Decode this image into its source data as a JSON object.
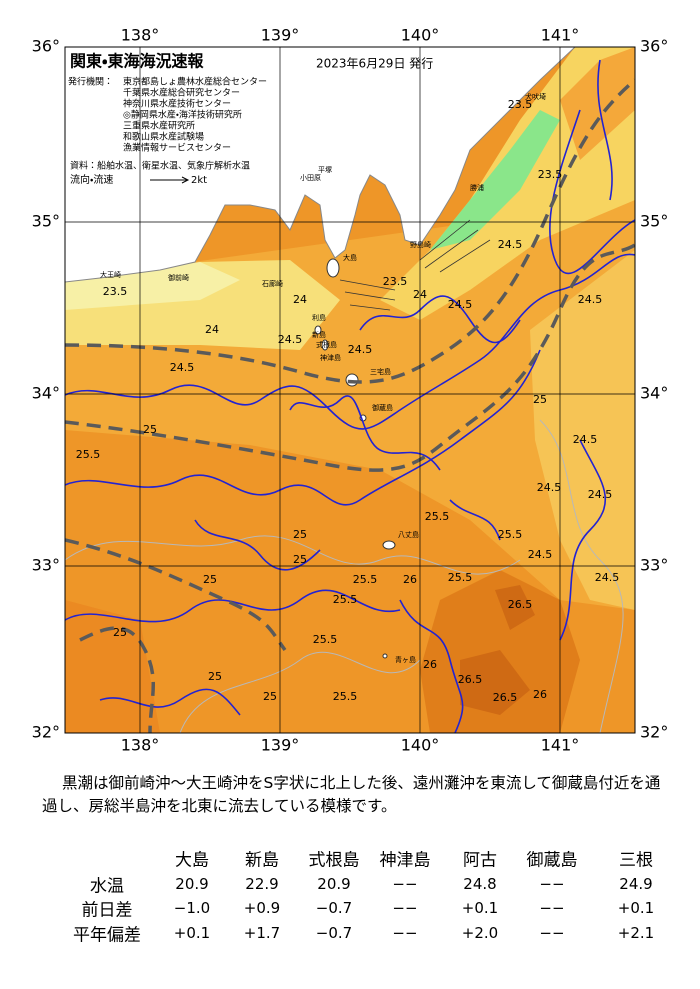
{
  "map": {
    "title": "関東・東海海況速報",
    "date": "2023年6月29日 発行",
    "issuer_heading": "発行機関：",
    "issuers": [
      "東京都島しょ農林水産総合センター",
      "千葉県水産総合研究センター",
      "神奈川県水産技術センター",
      "◎静岡県水産・海洋技術研究所",
      "三重県水産研究所",
      "和歌山県水産試験場",
      "漁業情報サービスセンター"
    ],
    "source": "資料：船舶水温、衛星水温、気象庁解析水温",
    "legend_label": "流向・流速",
    "legend_speed": "2kt",
    "lon_labels": [
      "138°",
      "139°",
      "140°",
      "141°"
    ],
    "lat_labels": [
      "36°",
      "35°",
      "34°",
      "33°",
      "32°"
    ],
    "places": [
      "大島",
      "利島",
      "新島",
      "式根島",
      "神津島",
      "三宅島",
      "御蔵島",
      "八丈島",
      "青ヶ島",
      "石廊崎",
      "御前崎",
      "大王崎",
      "犬吠埼",
      "勝浦",
      "野島崎",
      "平塚",
      "小田原"
    ],
    "contour_labels": [
      "23.5",
      "24",
      "24.5",
      "24",
      "24.5",
      "25.5",
      "25",
      "24.5",
      "25",
      "25.5",
      "25",
      "24.5",
      "24.5",
      "24.5",
      "24.5",
      "24.5",
      "25.5",
      "25",
      "25",
      "25.5",
      "25.5",
      "25",
      "25.5",
      "25",
      "25",
      "25.5",
      "26",
      "25.5",
      "26",
      "26.5",
      "26.5",
      "26",
      "26.5",
      "24",
      "23.5",
      "23.5",
      "24.5",
      "24.5",
      "24.5",
      "23.5"
    ]
  },
  "summary": "黒潮は御前崎沖～大王崎沖をS字状に北上した後、遠州灘沖を東流して御蔵島付近を通過し、房総半島沖を北東に流去している模様です。",
  "table": {
    "columns": [
      "大島",
      "新島",
      "式根島",
      "神津島",
      "阿古",
      "御蔵島",
      "三根"
    ],
    "rows": [
      {
        "label": "水温",
        "values": [
          "20.9",
          "22.9",
          "20.9",
          "−−",
          "24.8",
          "−−",
          "24.9"
        ]
      },
      {
        "label": "前日差",
        "values": [
          "−1.0",
          "+0.9",
          "−0.7",
          "−−",
          "+0.1",
          "−−",
          "+0.1"
        ]
      },
      {
        "label": "平年偏差",
        "values": [
          "+0.1",
          "+1.7",
          "−0.7",
          "−−",
          "+2.0",
          "−−",
          "+2.1"
        ]
      }
    ]
  }
}
